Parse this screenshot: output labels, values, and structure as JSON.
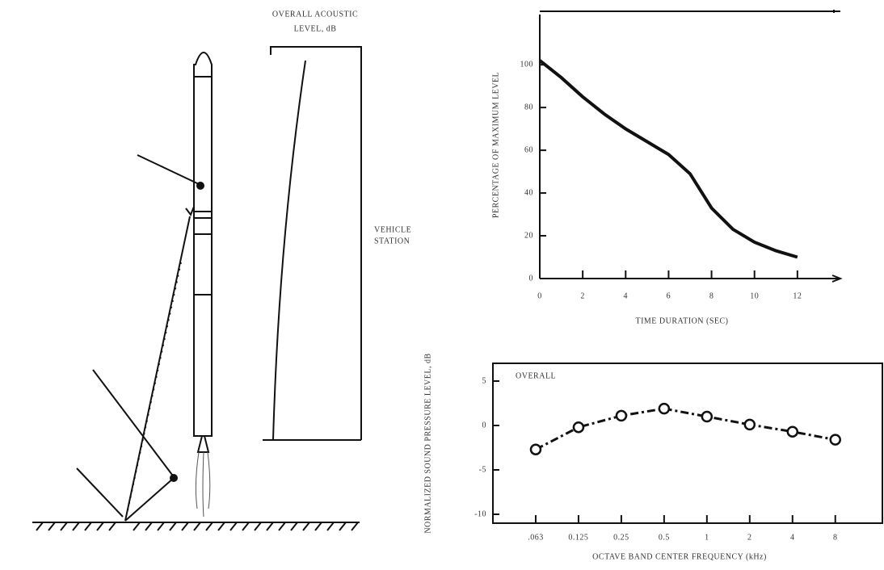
{
  "diagram": {
    "station_label": [
      "VEHICLE",
      "STATION"
    ],
    "level_label": [
      "OVERALL ACOUSTIC",
      "LEVEL, dB"
    ]
  },
  "chart_data": [
    {
      "type": "line",
      "y_label": "PERCENTAGE OF MAXIMUM LEVEL",
      "x_label": "TIME DURATION (SEC)",
      "x": [
        0,
        1,
        2,
        3,
        4,
        5,
        6,
        7,
        8,
        9,
        10,
        11,
        12
      ],
      "series": [
        {
          "name": null,
          "color": "#111111",
          "values": [
            102,
            94,
            85,
            77,
            70,
            64,
            58,
            49,
            33,
            23,
            17,
            13,
            10
          ]
        }
      ],
      "xlim": [
        0,
        14
      ],
      "xticks": [
        0,
        2,
        4,
        6,
        8,
        10,
        12
      ],
      "ylim": [
        0,
        125
      ],
      "yticks": [
        0,
        20,
        40,
        60,
        80,
        100
      ]
    },
    {
      "type": "line",
      "y_label": "NORMALIZED SOUND PRESSURE LEVEL, dB",
      "x_label": "OCTAVE BAND CENTER FREQUENCY (kHz)",
      "annotation": "OVERALL",
      "categories": [
        ".063",
        "0.125",
        "0.25",
        "0.5",
        "1",
        "2",
        "4",
        "8"
      ],
      "series": [
        {
          "name": null,
          "color": "#111111",
          "values": [
            -2.7,
            -0.2,
            1.1,
            1.9,
            1.0,
            0.1,
            -0.7,
            -1.6
          ]
        }
      ],
      "ylim": [
        -11,
        7
      ],
      "yticks": [
        -10,
        -5,
        0,
        5
      ],
      "markers": true,
      "dashed": true
    }
  ]
}
